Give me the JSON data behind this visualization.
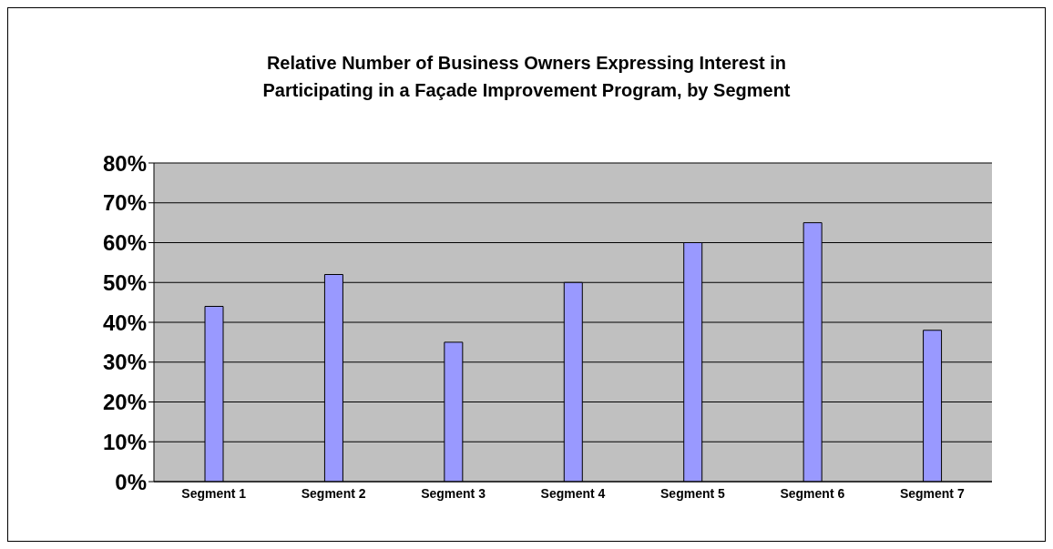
{
  "chart_data": {
    "type": "bar",
    "title": "Relative Number of Business Owners Expressing Interest in Participating in a Façade Improvement Program, by Segment",
    "categories": [
      "Segment 1",
      "Segment 2",
      "Segment 3",
      "Segment 4",
      "Segment 5",
      "Segment 6",
      "Segment 7"
    ],
    "values": [
      0.44,
      0.52,
      0.35,
      0.5,
      0.6,
      0.65,
      0.38
    ],
    "color": "#9999ff",
    "ylim": [
      0,
      0.8
    ],
    "yticks": [
      {
        "value": 0,
        "label": "0%"
      },
      {
        "value": 0.1,
        "label": "10%"
      },
      {
        "value": 0.2,
        "label": "20%"
      },
      {
        "value": 0.3,
        "label": "30%"
      },
      {
        "value": 0.4,
        "label": "40%"
      },
      {
        "value": 0.5,
        "label": "50%"
      },
      {
        "value": 0.6,
        "label": "60%"
      },
      {
        "value": 0.7,
        "label": "70%"
      },
      {
        "value": 0.8,
        "label": "80%"
      }
    ],
    "grid": "y"
  }
}
